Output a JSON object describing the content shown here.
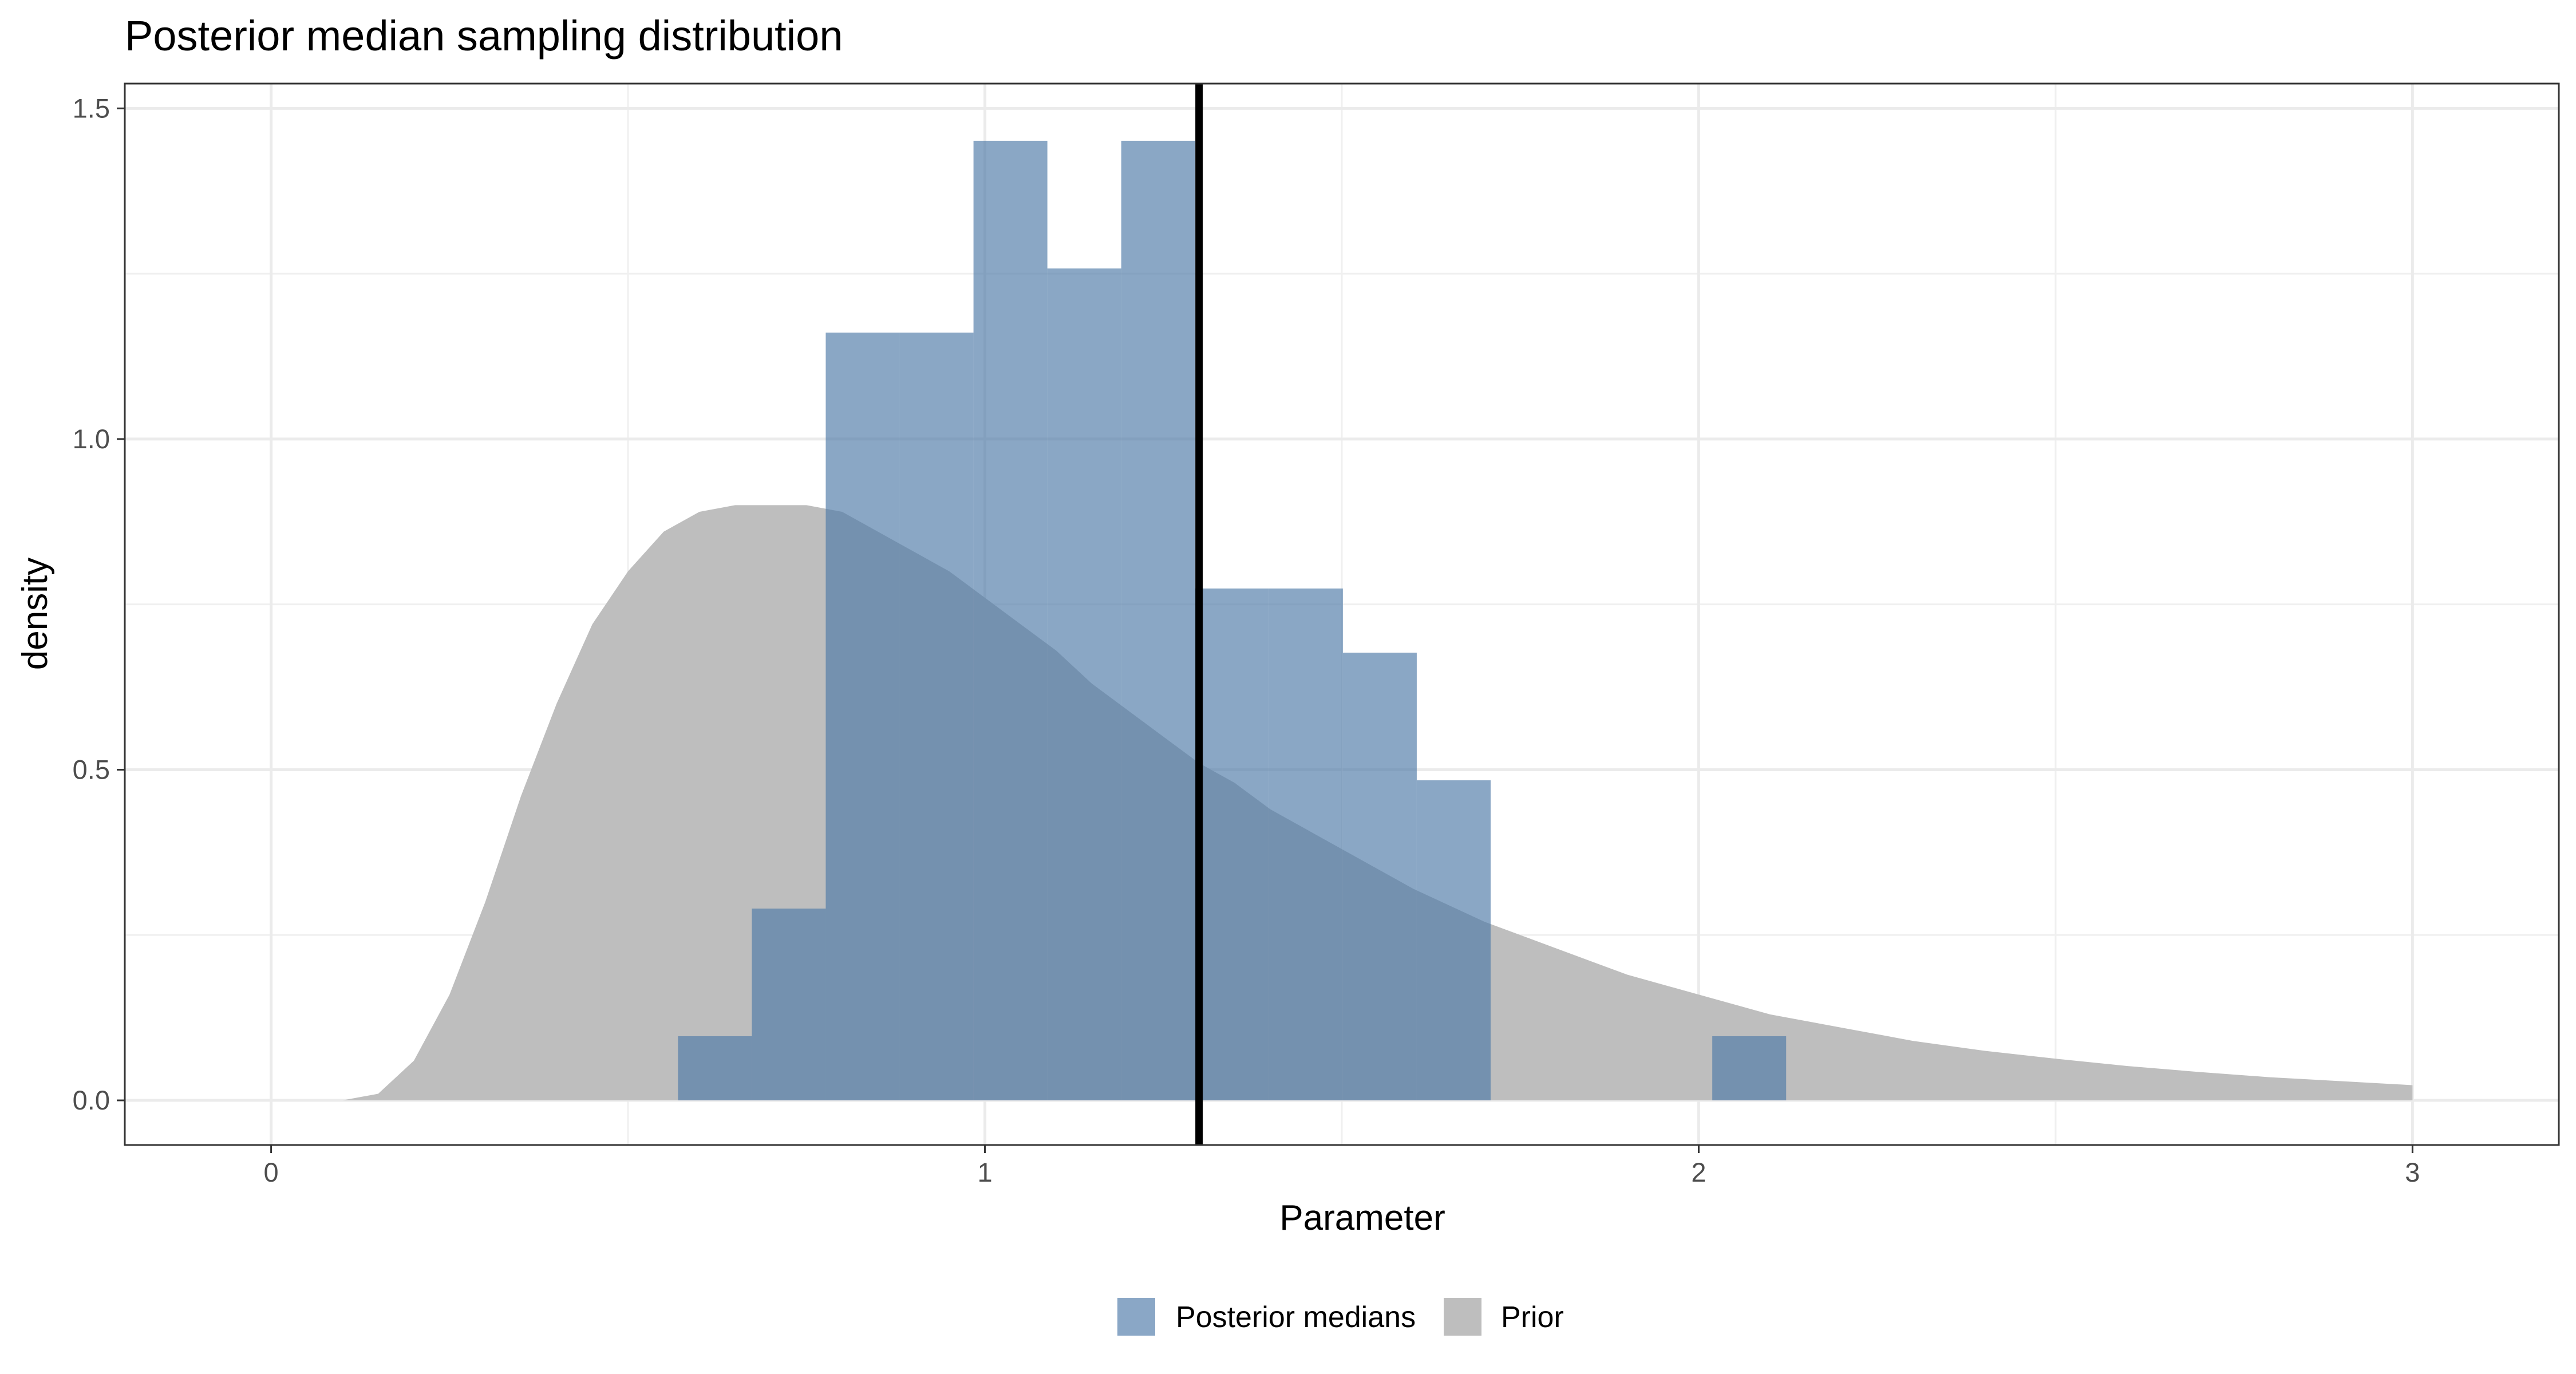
{
  "chart_data": {
    "type": "histogram",
    "title": "Posterior median sampling distribution",
    "xlabel": "Parameter",
    "ylabel": "density",
    "xlim": [
      -0.205,
      3.205
    ],
    "ylim": [
      -0.0675,
      1.5375
    ],
    "x_ticks": [
      0,
      1,
      2,
      3
    ],
    "x_tick_labels": [
      "0",
      "1",
      "2",
      "3"
    ],
    "y_ticks": [
      0,
      0.5,
      1,
      1.5
    ],
    "y_tick_labels": [
      "0.0",
      "0.5",
      "1.0",
      "1.5"
    ],
    "grid": true,
    "legend_position": "bottom",
    "series": [
      {
        "name": "Posterior medians",
        "kind": "histogram",
        "color": "#4e79a7",
        "opacity": 0.66,
        "bin_width": 0.1035,
        "bins": [
          {
            "x0": 0.57,
            "density": 0.097
          },
          {
            "x0": 0.6735,
            "density": 0.29
          },
          {
            "x0": 0.777,
            "density": 1.161
          },
          {
            "x0": 0.8805,
            "density": 1.161
          },
          {
            "x0": 0.984,
            "density": 1.451
          },
          {
            "x0": 1.0875,
            "density": 1.258
          },
          {
            "x0": 1.191,
            "density": 1.451
          },
          {
            "x0": 1.2945,
            "density": 0.774
          },
          {
            "x0": 1.398,
            "density": 0.774
          },
          {
            "x0": 1.5015,
            "density": 0.677
          },
          {
            "x0": 1.605,
            "density": 0.484
          },
          {
            "x0": 2.019,
            "density": 0.097
          }
        ]
      },
      {
        "name": "Prior",
        "kind": "density",
        "color": "#bebebe",
        "x": [
          0.0,
          0.05,
          0.1,
          0.15,
          0.2,
          0.25,
          0.3,
          0.35,
          0.4,
          0.45,
          0.5,
          0.55,
          0.6,
          0.65,
          0.7,
          0.75,
          0.8,
          0.85,
          0.9,
          0.95,
          1.0,
          1.05,
          1.1,
          1.15,
          1.2,
          1.25,
          1.3,
          1.35,
          1.4,
          1.45,
          1.5,
          1.6,
          1.7,
          1.8,
          1.9,
          2.0,
          2.1,
          2.2,
          2.3,
          2.4,
          2.5,
          2.6,
          2.7,
          2.8,
          2.9,
          3.0
        ],
        "y": [
          0.0,
          0.0,
          0.0,
          0.01,
          0.06,
          0.16,
          0.3,
          0.46,
          0.6,
          0.72,
          0.8,
          0.86,
          0.89,
          0.9,
          0.9,
          0.9,
          0.89,
          0.86,
          0.83,
          0.8,
          0.76,
          0.72,
          0.68,
          0.63,
          0.59,
          0.55,
          0.51,
          0.48,
          0.44,
          0.41,
          0.38,
          0.32,
          0.27,
          0.23,
          0.19,
          0.16,
          0.13,
          0.11,
          0.09,
          0.075,
          0.063,
          0.052,
          0.043,
          0.035,
          0.029,
          0.023
        ]
      }
    ],
    "reference_line": {
      "x": 1.3,
      "color": "#000000"
    },
    "legend": [
      {
        "label": "Posterior medians",
        "color": "#8aa7c6"
      },
      {
        "label": "Prior",
        "color": "#bebebe"
      }
    ]
  }
}
